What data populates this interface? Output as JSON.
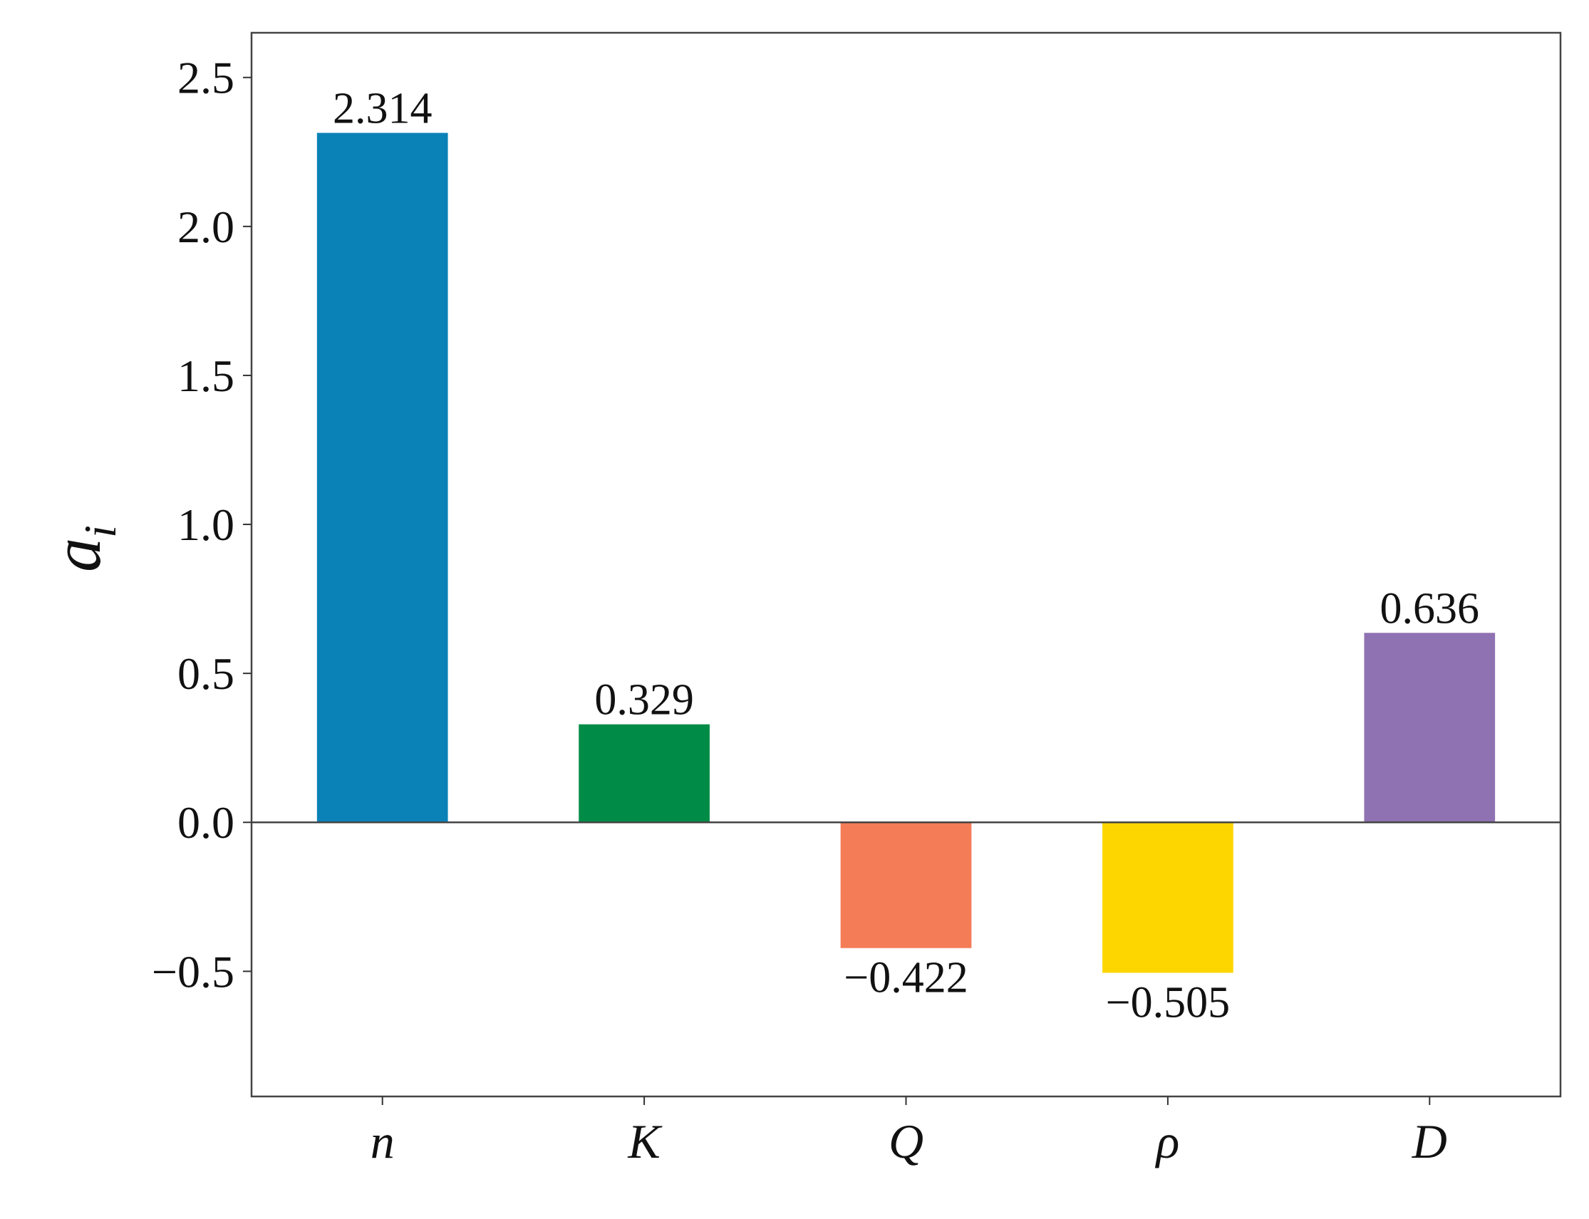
{
  "chart_data": {
    "type": "bar",
    "title": "",
    "xlabel": "",
    "ylabel": "a",
    "ylabel_subscript": "i",
    "categories": [
      "n",
      "K",
      "Q",
      "ρ",
      "D"
    ],
    "values": [
      2.314,
      0.329,
      -0.422,
      -0.505,
      0.636
    ],
    "value_labels": [
      "2.314",
      "0.329",
      "−0.422",
      "−0.505",
      "0.636"
    ],
    "colors": [
      "#0a82b8",
      "#008c47",
      "#f47c57",
      "#fdd600",
      "#8f72b1"
    ],
    "ylim": [
      -0.92,
      2.65
    ],
    "yticks": [
      -0.5,
      0.0,
      0.5,
      1.0,
      1.5,
      2.0,
      2.5
    ],
    "ytick_labels": [
      "−0.5",
      "0.0",
      "0.5",
      "1.0",
      "1.5",
      "2.0",
      "2.5"
    ],
    "zero_line": true,
    "grid": false,
    "legend": "none"
  }
}
